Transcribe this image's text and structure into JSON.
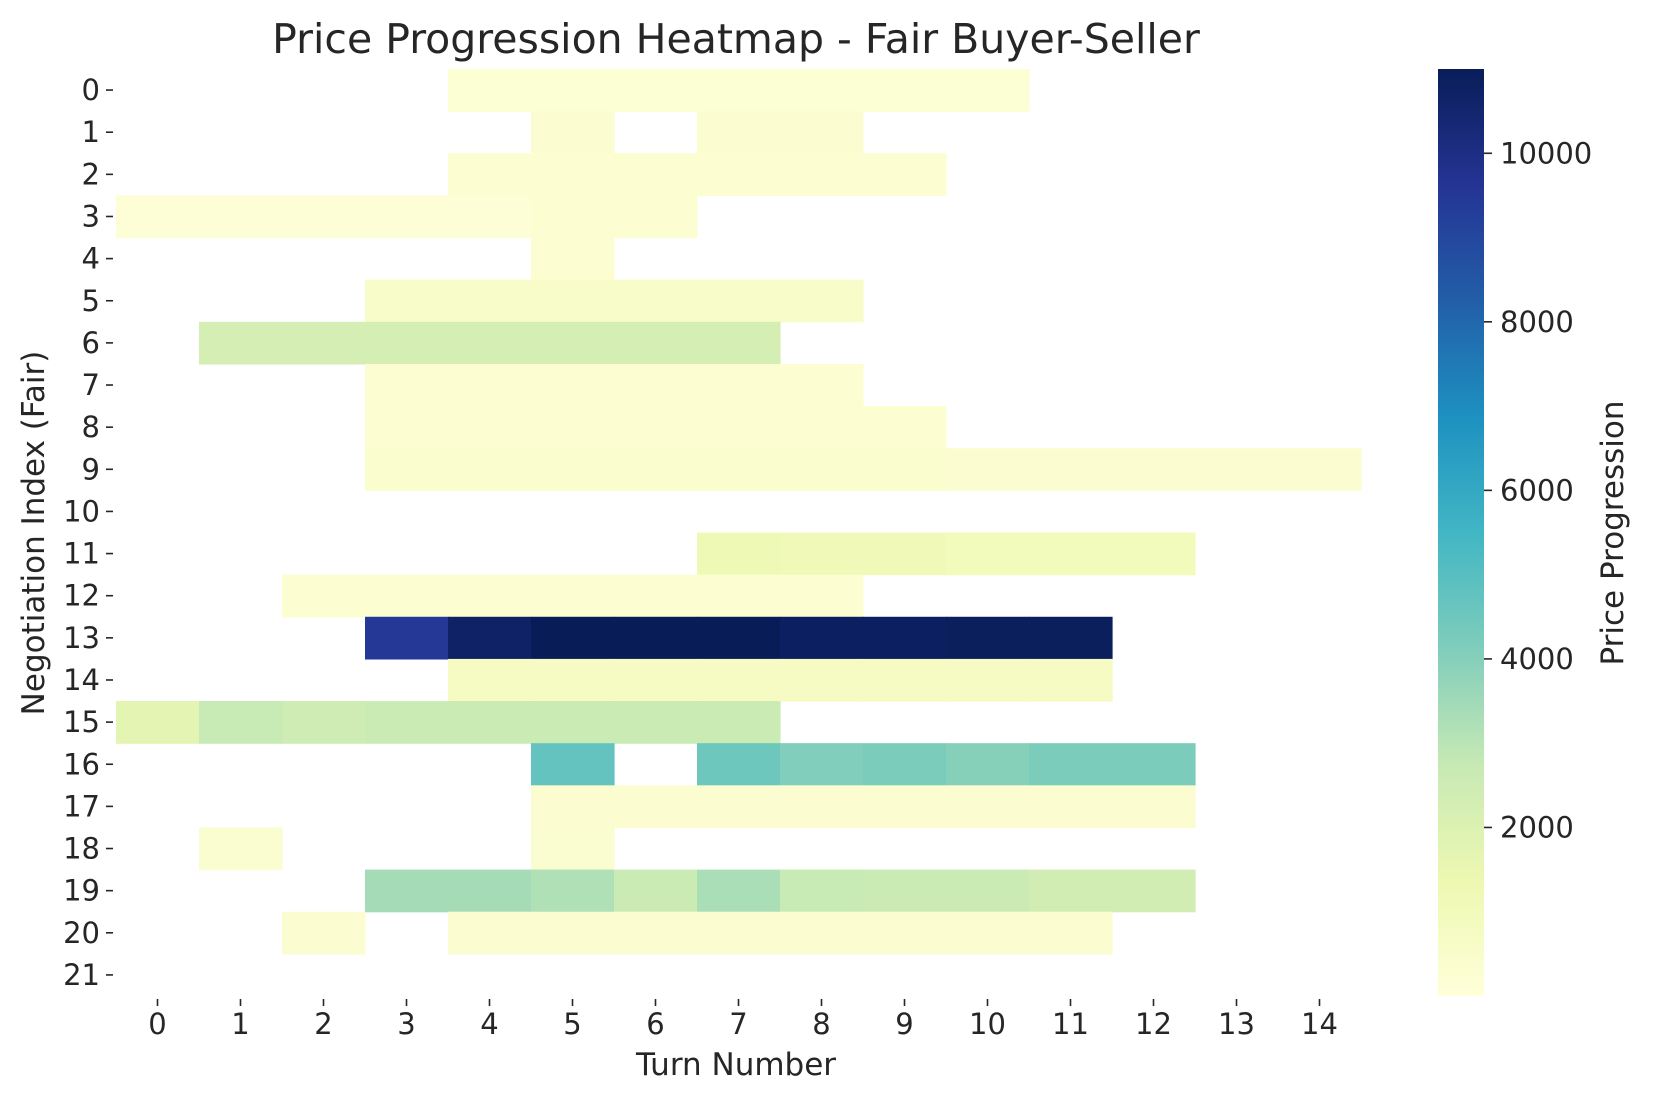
{
  "chart_data": {
    "type": "heatmap",
    "title": "Price Progression Heatmap - Fair Buyer-Seller",
    "xlabel": "Turn Number",
    "ylabel": "Negotiation Index (Fair)",
    "x_ticks": [
      "0",
      "1",
      "2",
      "3",
      "4",
      "5",
      "6",
      "7",
      "8",
      "9",
      "10",
      "11",
      "12",
      "13",
      "14"
    ],
    "y_ticks": [
      "0",
      "1",
      "2",
      "3",
      "4",
      "5",
      "6",
      "7",
      "8",
      "9",
      "10",
      "11",
      "12",
      "13",
      "14",
      "15",
      "16",
      "17",
      "18",
      "19",
      "20",
      "21"
    ],
    "colorbar": {
      "label": "Price Progression",
      "min": 0,
      "max": 11000,
      "ticks": [
        2000,
        4000,
        6000,
        8000,
        10000
      ],
      "colormap": "YlGnBu"
    },
    "grid": false,
    "missing_value_color": "#ffffff",
    "values": [
      [
        null,
        null,
        null,
        null,
        200,
        200,
        200,
        200,
        200,
        200,
        200,
        null,
        null,
        null,
        null
      ],
      [
        null,
        null,
        null,
        null,
        null,
        300,
        null,
        300,
        300,
        null,
        null,
        null,
        null,
        null,
        null
      ],
      [
        null,
        null,
        null,
        null,
        250,
        250,
        250,
        250,
        250,
        250,
        null,
        null,
        null,
        null,
        null
      ],
      [
        150,
        150,
        150,
        150,
        150,
        250,
        250,
        null,
        null,
        null,
        null,
        null,
        null,
        null,
        null
      ],
      [
        null,
        null,
        null,
        null,
        null,
        250,
        null,
        null,
        null,
        null,
        null,
        null,
        null,
        null,
        null
      ],
      [
        null,
        null,
        null,
        550,
        550,
        550,
        550,
        550,
        550,
        null,
        null,
        null,
        null,
        null,
        null
      ],
      [
        null,
        2250,
        2250,
        2250,
        2250,
        2250,
        2250,
        2250,
        null,
        null,
        null,
        null,
        null,
        null,
        null
      ],
      [
        null,
        null,
        null,
        250,
        250,
        250,
        250,
        250,
        250,
        null,
        null,
        null,
        null,
        null,
        null
      ],
      [
        null,
        null,
        null,
        250,
        250,
        250,
        250,
        250,
        250,
        250,
        null,
        null,
        null,
        null,
        null
      ],
      [
        null,
        null,
        null,
        400,
        400,
        400,
        400,
        400,
        400,
        400,
        300,
        300,
        300,
        300,
        300
      ],
      [
        null,
        null,
        null,
        null,
        null,
        null,
        null,
        null,
        null,
        null,
        null,
        null,
        null,
        null,
        null
      ],
      [
        null,
        null,
        null,
        null,
        null,
        null,
        null,
        1200,
        1100,
        1100,
        1000,
        1000,
        1000,
        null,
        null
      ],
      [
        null,
        null,
        250,
        250,
        250,
        250,
        250,
        250,
        250,
        null,
        null,
        null,
        null,
        null,
        null
      ],
      [
        null,
        null,
        null,
        9500,
        10700,
        11000,
        11000,
        11000,
        10800,
        10800,
        10900,
        10900,
        null,
        null,
        null
      ],
      [
        null,
        null,
        null,
        null,
        750,
        750,
        750,
        750,
        750,
        750,
        750,
        750,
        null,
        null,
        null
      ],
      [
        1700,
        2700,
        2500,
        2600,
        2600,
        2600,
        2600,
        2600,
        null,
        null,
        null,
        null,
        null,
        null,
        null
      ],
      [
        null,
        null,
        null,
        null,
        null,
        4700,
        null,
        4500,
        4100,
        4200,
        4000,
        4200,
        4200,
        null,
        null
      ],
      [
        null,
        null,
        null,
        null,
        null,
        300,
        300,
        300,
        300,
        300,
        300,
        300,
        300,
        null,
        null
      ],
      [
        null,
        350,
        null,
        null,
        null,
        350,
        null,
        null,
        null,
        null,
        null,
        null,
        null,
        null,
        null
      ],
      [
        null,
        null,
        null,
        3400,
        3400,
        3200,
        2600,
        3300,
        2700,
        2600,
        2600,
        2400,
        2400,
        null,
        null
      ],
      [
        null,
        null,
        300,
        null,
        300,
        300,
        300,
        300,
        300,
        300,
        300,
        300,
        null,
        null,
        null
      ],
      [
        null,
        null,
        null,
        null,
        null,
        null,
        null,
        null,
        null,
        null,
        null,
        null,
        null,
        null,
        null
      ]
    ]
  }
}
